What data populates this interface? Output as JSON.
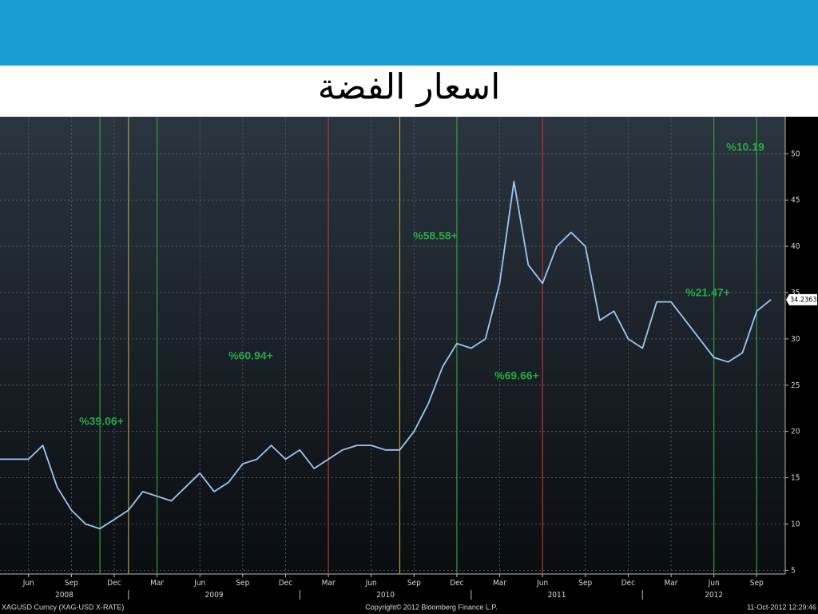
{
  "chart_data": {
    "type": "line",
    "title": "اسعار الفضة",
    "x": [
      "2008-04",
      "2008-05",
      "2008-06",
      "2008-07",
      "2008-08",
      "2008-09",
      "2008-10",
      "2008-11",
      "2008-12",
      "2009-01",
      "2009-02",
      "2009-03",
      "2009-04",
      "2009-05",
      "2009-06",
      "2009-07",
      "2009-08",
      "2009-09",
      "2009-10",
      "2009-11",
      "2009-12",
      "2010-01",
      "2010-02",
      "2010-03",
      "2010-04",
      "2010-05",
      "2010-06",
      "2010-07",
      "2010-08",
      "2010-09",
      "2010-10",
      "2010-11",
      "2010-12",
      "2011-01",
      "2011-02",
      "2011-03",
      "2011-04",
      "2011-05",
      "2011-06",
      "2011-07",
      "2011-08",
      "2011-09",
      "2011-10",
      "2011-11",
      "2011-12",
      "2012-01",
      "2012-02",
      "2012-03",
      "2012-04",
      "2012-05",
      "2012-06",
      "2012-07",
      "2012-08",
      "2012-09",
      "2012-10"
    ],
    "series": [
      {
        "name": "XAGUSD Curncy (XAG-USD X-RATE)",
        "color": "#9cc6f5",
        "values": [
          17,
          17,
          17,
          18.5,
          14,
          11.5,
          10,
          9.5,
          10.5,
          11.5,
          13.5,
          13,
          12.5,
          14,
          15.5,
          13.5,
          14.5,
          16.5,
          17,
          18.5,
          17,
          18,
          16,
          17,
          18,
          18.5,
          18.5,
          18,
          18,
          20,
          23,
          27,
          29.5,
          29,
          30,
          36,
          47,
          38,
          36,
          40,
          41.5,
          40,
          32,
          33,
          30,
          29,
          34,
          34,
          32,
          30,
          28,
          27.5,
          28.5,
          33,
          34.2363
        ]
      }
    ],
    "last_price": 34.2363,
    "xlim": [
      "2008-04",
      "2012-11"
    ],
    "ylim": [
      4.6,
      54
    ],
    "yticks": [
      5,
      10,
      15,
      20,
      25,
      30,
      35,
      40,
      45,
      50
    ],
    "xticks": [
      {
        "value": "2008-06",
        "label": "Jun"
      },
      {
        "value": "2008-09",
        "label": "Sep"
      },
      {
        "value": "2008-12",
        "label": "Dec"
      },
      {
        "value": "2009-03",
        "label": "Mar"
      },
      {
        "value": "2009-06",
        "label": "Jun"
      },
      {
        "value": "2009-09",
        "label": "Sep"
      },
      {
        "value": "2009-12",
        "label": "Dec"
      },
      {
        "value": "2010-03",
        "label": "Mar"
      },
      {
        "value": "2010-06",
        "label": "Jun"
      },
      {
        "value": "2010-09",
        "label": "Sep"
      },
      {
        "value": "2010-12",
        "label": "Dec"
      },
      {
        "value": "2011-03",
        "label": "Mar"
      },
      {
        "value": "2011-06",
        "label": "Jun"
      },
      {
        "value": "2011-09",
        "label": "Sep"
      },
      {
        "value": "2011-12",
        "label": "Dec"
      },
      {
        "value": "2012-03",
        "label": "Mar"
      },
      {
        "value": "2012-06",
        "label": "Jun"
      },
      {
        "value": "2012-09",
        "label": "Sep"
      }
    ],
    "years": [
      "2008",
      "2009",
      "2010",
      "2011",
      "2012"
    ],
    "grid": true,
    "markers": [
      {
        "x": "2008-11",
        "color": "#2f9e3a"
      },
      {
        "x": "2009-01",
        "color": "#a9a03a"
      },
      {
        "x": "2009-03",
        "color": "#2f9e3a"
      },
      {
        "x": "2010-03",
        "color": "#b8342a"
      },
      {
        "x": "2010-08",
        "color": "#a9a03a"
      },
      {
        "x": "2010-12",
        "color": "#2f9e3a"
      },
      {
        "x": "2011-06",
        "color": "#b8342a"
      },
      {
        "x": "2012-06",
        "color": "#2f9e3a"
      },
      {
        "x": "2012-09",
        "color": "#2f9e3a"
      }
    ],
    "annotations": [
      "%39.06+",
      "%60.94+",
      "%58.58+",
      "%69.66+",
      "%10.19",
      "%21.47+"
    ],
    "footer": {
      "left": "XAGUSD Curncy (XAG-USD X-RATE)",
      "center": "Copyright© 2012 Bloomberg Finance L.P.",
      "right": "11-Oct-2012 12:29:46"
    }
  }
}
